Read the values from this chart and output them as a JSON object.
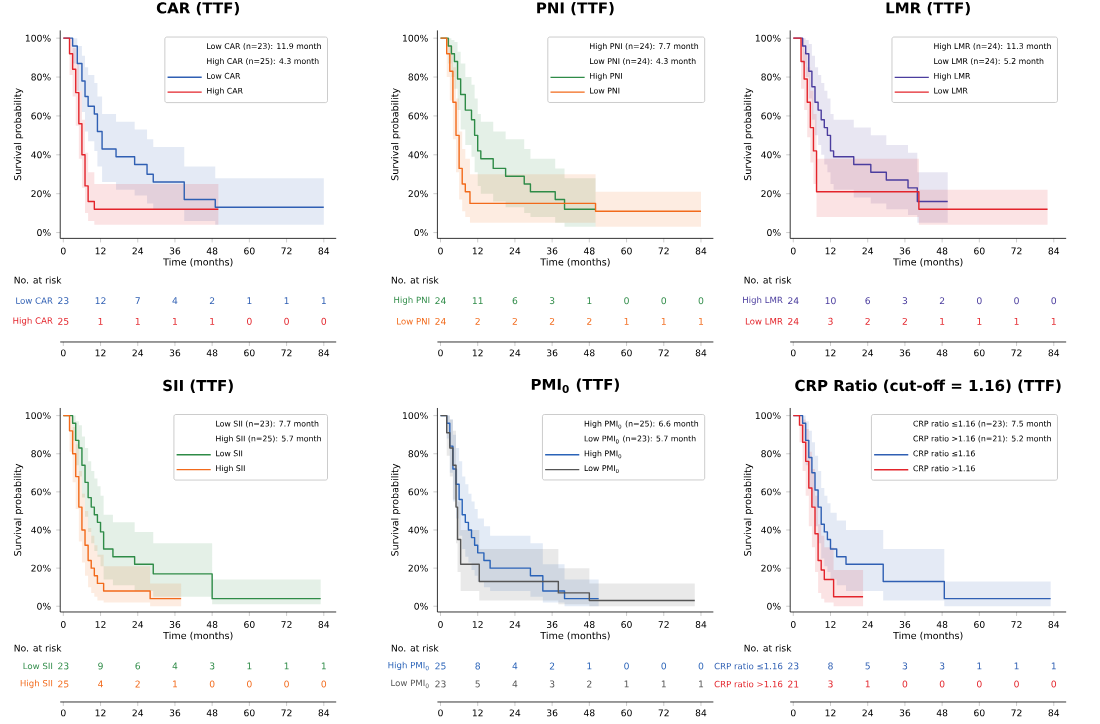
{
  "chart_data": [
    {
      "type": "step",
      "title": "CAR (TTF)",
      "xlabel": "Time (months)",
      "ylabel": "Survival probability",
      "xlim": [
        -1,
        88
      ],
      "ylim": [
        -3,
        104
      ],
      "xticks": [
        0,
        12,
        24,
        36,
        48,
        60,
        72,
        84
      ],
      "yticks": [
        {
          "value": 0,
          "label": "0%"
        },
        {
          "value": 20,
          "label": "20%"
        },
        {
          "value": 40,
          "label": "40%"
        },
        {
          "value": 60,
          "label": "60%"
        },
        {
          "value": 80,
          "label": "80%"
        },
        {
          "value": 100,
          "label": "100%"
        }
      ],
      "legend": "top right",
      "annotations": [
        "Low CAR (n=23): 11.9 month",
        "High CAR (n=25): 4.3 month",
        "No. at risk",
        "Low CAR",
        "23",
        "12",
        "7",
        "4",
        "2",
        "1",
        "1",
        "1",
        "High CAR",
        "25",
        "1",
        "1",
        "1",
        "1",
        "0",
        "0",
        "0",
        "0",
        "12",
        "24",
        "36",
        "48",
        "60",
        "72",
        "84"
      ],
      "series": [
        {
          "name": "Low CAR",
          "color": "#2f5fb3",
          "type": "step",
          "x": [
            0,
            3,
            4.5,
            6,
            7,
            8,
            10,
            11,
            12.5,
            17,
            23,
            27,
            29,
            39,
            49,
            84
          ],
          "values": [
            100,
            96,
            87,
            78,
            70,
            65,
            61,
            52,
            43,
            39,
            35,
            30,
            26,
            17,
            13,
            13
          ],
          "lower": [
            100,
            87,
            73,
            62,
            52,
            47,
            42,
            34,
            26,
            22,
            19,
            15,
            12,
            6,
            4,
            4
          ],
          "upper": [
            100,
            100,
            96,
            91,
            85,
            81,
            77,
            70,
            61,
            57,
            53,
            48,
            44,
            34,
            28,
            28
          ]
        },
        {
          "name": "High CAR",
          "color": "#e3242b",
          "type": "step",
          "x": [
            0,
            2,
            3,
            4,
            5,
            6,
            7,
            8,
            10,
            50
          ],
          "values": [
            100,
            92,
            84,
            72,
            56,
            40,
            24,
            16,
            12,
            12
          ],
          "lower": [
            100,
            81,
            70,
            55,
            38,
            23,
            10,
            6,
            4,
            4
          ],
          "upper": [
            100,
            100,
            95,
            87,
            73,
            58,
            41,
            31,
            25,
            25
          ]
        }
      ]
    },
    {
      "type": "step",
      "title": "PNI (TTF)",
      "xlabel": "Time (months)",
      "ylabel": "Survival probability",
      "xlim": [
        -1,
        88
      ],
      "ylim": [
        -3,
        104
      ],
      "xticks": [
        0,
        12,
        24,
        36,
        48,
        60,
        72,
        84
      ],
      "yticks": [
        {
          "value": 0,
          "label": "0%"
        },
        {
          "value": 20,
          "label": "20%"
        },
        {
          "value": 40,
          "label": "40%"
        },
        {
          "value": 60,
          "label": "60%"
        },
        {
          "value": 80,
          "label": "80%"
        },
        {
          "value": 100,
          "label": "100%"
        }
      ],
      "legend": "top right",
      "annotations": [
        "High PNI (n=24): 7.7 month",
        "Low PNI (n=24): 4.3 month",
        "No. at risk",
        "High PNI",
        "24",
        "11",
        "6",
        "3",
        "1",
        "0",
        "0",
        "0",
        "Low PNI",
        "24",
        "2",
        "2",
        "2",
        "2",
        "1",
        "1",
        "1",
        "0",
        "12",
        "24",
        "36",
        "48",
        "60",
        "72",
        "84"
      ],
      "series": [
        {
          "name": "High PNI",
          "color": "#2e8b47",
          "type": "step",
          "x": [
            0,
            2.5,
            3.5,
            4.5,
            5.5,
            6.5,
            8,
            10,
            11,
            12,
            13,
            17,
            21,
            27,
            29,
            37,
            40,
            50
          ],
          "values": [
            100,
            96,
            92,
            88,
            79,
            71,
            63,
            58,
            50,
            42,
            38,
            33,
            29,
            25,
            21,
            17,
            12,
            12
          ],
          "lower": [
            100,
            87,
            80,
            74,
            63,
            53,
            45,
            39,
            31,
            24,
            20,
            16,
            13,
            10,
            8,
            5,
            3,
            3
          ],
          "upper": [
            100,
            100,
            99,
            98,
            93,
            87,
            80,
            76,
            69,
            61,
            57,
            52,
            48,
            43,
            38,
            33,
            28,
            28
          ]
        },
        {
          "name": "Low PNI",
          "color": "#f26a1b",
          "type": "step",
          "x": [
            0,
            2,
            3,
            4,
            5,
            6,
            7,
            8,
            9.5,
            50,
            84
          ],
          "values": [
            100,
            92,
            83,
            67,
            50,
            33,
            25,
            21,
            15,
            11,
            11
          ],
          "lower": [
            100,
            80,
            68,
            48,
            31,
            17,
            11,
            8,
            5,
            3,
            3
          ],
          "upper": [
            100,
            100,
            96,
            85,
            69,
            52,
            43,
            38,
            30,
            21,
            21
          ]
        }
      ]
    },
    {
      "type": "step",
      "title": "LMR (TTF)",
      "xlabel": "Time (months)",
      "ylabel": "Survival probability",
      "xlim": [
        -1,
        88
      ],
      "ylim": [
        -3,
        104
      ],
      "xticks": [
        0,
        12,
        24,
        36,
        48,
        60,
        72,
        84
      ],
      "yticks": [
        {
          "value": 0,
          "label": "0%"
        },
        {
          "value": 20,
          "label": "20%"
        },
        {
          "value": 40,
          "label": "40%"
        },
        {
          "value": 60,
          "label": "60%"
        },
        {
          "value": 80,
          "label": "80%"
        },
        {
          "value": 100,
          "label": "100%"
        }
      ],
      "legend": "top right",
      "annotations": [
        "High LMR (n=24): 11.3 month",
        "Low LMR (n=24): 5.2 month",
        "No. at risk",
        "High LMR",
        "24",
        "10",
        "6",
        "3",
        "2",
        "0",
        "0",
        "0",
        "Low LMR",
        "24",
        "3",
        "2",
        "2",
        "1",
        "1",
        "1",
        "1",
        "0",
        "12",
        "24",
        "36",
        "48",
        "60",
        "72",
        "84"
      ],
      "series": [
        {
          "name": "High LMR",
          "color": "#4b3d9e",
          "type": "step",
          "x": [
            0,
            3,
            4,
            5,
            6,
            7,
            8,
            9,
            10,
            11,
            12,
            13,
            19.5,
            25,
            30,
            37,
            40,
            49.8
          ],
          "values": [
            100,
            96,
            92,
            83,
            75,
            67,
            63,
            58,
            54,
            50,
            42,
            39,
            35,
            31,
            27,
            23,
            16,
            16
          ],
          "lower": [
            100,
            87,
            80,
            69,
            58,
            50,
            45,
            40,
            35,
            31,
            25,
            22,
            18,
            15,
            12,
            9,
            5,
            5
          ],
          "upper": [
            100,
            100,
            99,
            97,
            91,
            85,
            81,
            77,
            73,
            69,
            61,
            58,
            54,
            50,
            45,
            41,
            31,
            31
          ]
        },
        {
          "name": "Low LMR",
          "color": "#e3242b",
          "type": "step",
          "x": [
            0,
            2.5,
            3.5,
            4.5,
            5.5,
            6.5,
            7.5,
            40.5,
            82
          ],
          "values": [
            100,
            88,
            79,
            67,
            54,
            42,
            21,
            12,
            12
          ],
          "lower": [
            100,
            74,
            63,
            49,
            36,
            25,
            8,
            4,
            4
          ],
          "upper": [
            100,
            100,
            93,
            85,
            73,
            61,
            38,
            22,
            22
          ]
        }
      ]
    },
    {
      "type": "step",
      "title": "SII (TTF)",
      "xlabel": "Time (months)",
      "ylabel": "Survival probability",
      "xlim": [
        -1,
        88
      ],
      "ylim": [
        -3,
        104
      ],
      "xticks": [
        0,
        12,
        24,
        36,
        48,
        60,
        72,
        84
      ],
      "yticks": [
        {
          "value": 0,
          "label": "0%"
        },
        {
          "value": 20,
          "label": "20%"
        },
        {
          "value": 40,
          "label": "40%"
        },
        {
          "value": 60,
          "label": "60%"
        },
        {
          "value": 80,
          "label": "80%"
        },
        {
          "value": 100,
          "label": "100%"
        }
      ],
      "legend": "top right",
      "annotations": [
        "Low SII (n=23): 7.7 month",
        "High SII (n=25): 5.7 month",
        "No. at risk",
        "Low SII",
        "23",
        "9",
        "6",
        "4",
        "3",
        "1",
        "1",
        "1",
        "High SII",
        "25",
        "4",
        "2",
        "1",
        "0",
        "0",
        "0",
        "0",
        "0",
        "12",
        "24",
        "36",
        "48",
        "60",
        "72",
        "84"
      ],
      "series": [
        {
          "name": "Low SII",
          "color": "#2e8b47",
          "type": "step",
          "x": [
            0,
            3,
            4,
            5,
            6,
            7,
            8,
            9,
            10,
            11,
            12,
            13,
            16,
            23,
            29,
            48,
            83
          ],
          "values": [
            100,
            96,
            87,
            83,
            74,
            65,
            57,
            52,
            48,
            44,
            39,
            30,
            26,
            22,
            17,
            4,
            4
          ],
          "lower": [
            100,
            87,
            74,
            68,
            57,
            47,
            39,
            33,
            29,
            26,
            21,
            14,
            11,
            8,
            5,
            1,
            1
          ],
          "upper": [
            100,
            100,
            97,
            95,
            89,
            83,
            76,
            71,
            67,
            63,
            58,
            48,
            44,
            39,
            33,
            14,
            14
          ]
        },
        {
          "name": "High SII",
          "color": "#f26a1b",
          "type": "step",
          "x": [
            0,
            2,
            3,
            4,
            5,
            6,
            7,
            8,
            9,
            10,
            11,
            13,
            28,
            38
          ],
          "values": [
            100,
            92,
            80,
            68,
            52,
            40,
            32,
            24,
            20,
            16,
            12,
            8,
            4,
            4
          ],
          "lower": [
            100,
            81,
            65,
            51,
            34,
            23,
            16,
            10,
            7,
            5,
            3,
            2,
            0,
            0
          ],
          "upper": [
            100,
            100,
            94,
            85,
            71,
            59,
            50,
            41,
            37,
            32,
            27,
            21,
            12,
            12
          ]
        }
      ]
    },
    {
      "type": "step",
      "title": "PMI$_{0}$ (TTF)",
      "xlabel": "Time (months)",
      "ylabel": "Survival probability",
      "xlim": [
        -1,
        88
      ],
      "ylim": [
        -3,
        104
      ],
      "xticks": [
        0,
        12,
        24,
        36,
        48,
        60,
        72,
        84
      ],
      "yticks": [
        {
          "value": 0,
          "label": "0%"
        },
        {
          "value": 20,
          "label": "20%"
        },
        {
          "value": 40,
          "label": "40%"
        },
        {
          "value": 60,
          "label": "60%"
        },
        {
          "value": 80,
          "label": "80%"
        },
        {
          "value": 100,
          "label": "100%"
        }
      ],
      "legend": "top right",
      "annotations": [
        "High PMI$_{0}$ (n=25): 6.6 month",
        "Low PMI$_{0}$ (n=23): 5.7 month",
        "No. at risk",
        "High PMI$_{0}$",
        "25",
        "8",
        "4",
        "2",
        "1",
        "0",
        "0",
        "0",
        "Low PMI$_{0}$",
        "23",
        "5",
        "4",
        "3",
        "2",
        "1",
        "1",
        "1",
        "0",
        "12",
        "24",
        "36",
        "48",
        "60",
        "72",
        "84"
      ],
      "series": [
        {
          "name": "High PMI$_{0}$",
          "color": "#2a63b8",
          "type": "step",
          "x": [
            0,
            2,
            3,
            4,
            5,
            6,
            7,
            8,
            9,
            10,
            11,
            12,
            14,
            16,
            29,
            33,
            40,
            51
          ],
          "values": [
            100,
            96,
            84,
            72,
            64,
            56,
            48,
            44,
            40,
            36,
            32,
            28,
            24,
            20,
            16,
            8,
            4,
            4
          ],
          "lower": [
            100,
            88,
            70,
            55,
            46,
            37,
            30,
            26,
            23,
            19,
            16,
            13,
            10,
            8,
            5,
            2,
            0,
            0
          ],
          "upper": [
            100,
            100,
            98,
            90,
            83,
            76,
            68,
            64,
            59,
            55,
            51,
            46,
            42,
            37,
            33,
            22,
            14,
            14
          ]
        },
        {
          "name": "Low PMI$_{0}$",
          "color": "#555555",
          "type": "step",
          "x": [
            0,
            2,
            3,
            4,
            5,
            5.5,
            6.5,
            12.5,
            38,
            48,
            82
          ],
          "values": [
            100,
            91,
            83,
            74,
            52,
            35,
            22,
            13,
            7,
            3,
            3
          ],
          "lower": [
            100,
            79,
            68,
            56,
            33,
            18,
            8,
            3,
            1,
            0,
            0
          ],
          "upper": [
            100,
            100,
            98,
            92,
            72,
            55,
            40,
            30,
            20,
            12,
            12
          ]
        }
      ]
    },
    {
      "type": "step",
      "title": "CRP Ratio (cut-off = 1.16) (TTF)",
      "xlabel": "Time (months)",
      "ylabel": "Survival probability",
      "xlim": [
        -1,
        88
      ],
      "ylim": [
        -3,
        104
      ],
      "xticks": [
        0,
        12,
        24,
        36,
        48,
        60,
        72,
        84
      ],
      "yticks": [
        {
          "value": 0,
          "label": "0%"
        },
        {
          "value": 20,
          "label": "20%"
        },
        {
          "value": 40,
          "label": "40%"
        },
        {
          "value": 60,
          "label": "60%"
        },
        {
          "value": 80,
          "label": "80%"
        },
        {
          "value": 100,
          "label": "100%"
        }
      ],
      "legend": "top right",
      "annotations": [
        "CRP ratio ≤1.16 (n=23): 7.5 month",
        "CRP ratio >1.16 (n=21): 5.2 month",
        "No. at risk",
        "CRP ratio ≤1.16",
        "23",
        "8",
        "5",
        "3",
        "3",
        "1",
        "1",
        "1",
        "CRP ratio >1.16",
        "21",
        "3",
        "1",
        "0",
        "0",
        "0",
        "0",
        "0",
        "0",
        "12",
        "24",
        "36",
        "48",
        "60",
        "72",
        "84"
      ],
      "series": [
        {
          "name": "CRP ratio ≤1.16",
          "color": "#2f5fb3",
          "type": "step",
          "x": [
            0,
            3,
            4,
            5,
            6,
            7,
            8,
            9,
            10,
            11,
            12,
            14,
            17,
            29,
            48.7,
            83
          ],
          "values": [
            100,
            96,
            87,
            78,
            70,
            61,
            52,
            43,
            39,
            35,
            30,
            26,
            22,
            13,
            4,
            4
          ],
          "lower": [
            100,
            87,
            74,
            62,
            52,
            42,
            33,
            25,
            21,
            18,
            14,
            11,
            8,
            3,
            0,
            0
          ],
          "upper": [
            100,
            100,
            97,
            92,
            86,
            79,
            71,
            62,
            58,
            54,
            49,
            45,
            40,
            30,
            13,
            13
          ]
        },
        {
          "name": "CRP ratio >1.16",
          "color": "#e3242b",
          "type": "step",
          "x": [
            0,
            2,
            3,
            4,
            5,
            6,
            7,
            8,
            9,
            10,
            13,
            22.5
          ],
          "values": [
            100,
            95,
            86,
            76,
            62,
            52,
            38,
            24,
            19,
            14,
            5,
            5
          ],
          "lower": [
            100,
            86,
            71,
            58,
            42,
            31,
            18,
            7,
            4,
            2,
            0,
            0
          ],
          "upper": [
            100,
            100,
            98,
            93,
            81,
            72,
            58,
            43,
            37,
            31,
            19,
            19
          ]
        }
      ]
    }
  ]
}
